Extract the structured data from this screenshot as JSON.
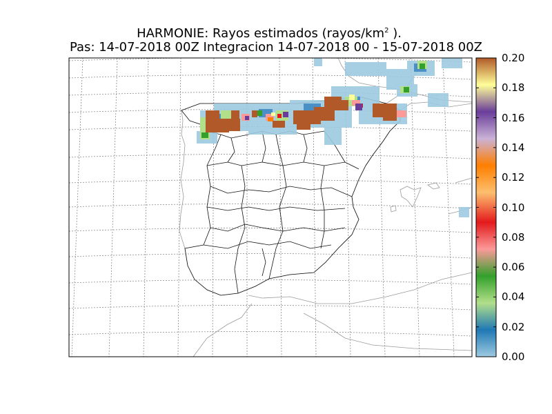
{
  "title": {
    "line1_prefix": "HARMONIE: Rayos estimados  (rayos/km",
    "line1_sup": "2",
    "line1_suffix": " ).",
    "line2": "Pas: 14-07-2018 00Z Integracion 14-07-2018 00 - 15-07-2018 00Z"
  },
  "colorbar": {
    "ticks": [
      "0.00",
      "0.02",
      "0.04",
      "0.06",
      "0.08",
      "0.10",
      "0.12",
      "0.14",
      "0.16",
      "0.18",
      "0.20"
    ],
    "colors": [
      "#9ecae1",
      "#1f78b4",
      "#b2df8a",
      "#33a02c",
      "#fb9a99",
      "#e31a1c",
      "#fdbf6f",
      "#ff7f00",
      "#cab2d6",
      "#6a3d9a",
      "#ffff99",
      "#b15928"
    ],
    "vmin": 0.0,
    "vmax": 0.2
  }
}
